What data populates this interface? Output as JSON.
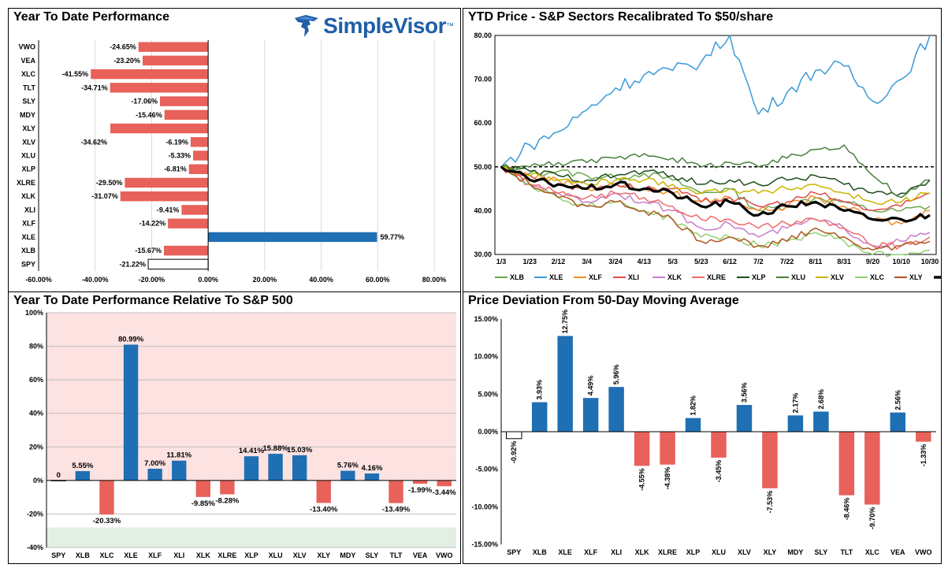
{
  "brand": {
    "name": "SimpleVisor",
    "tm": "™"
  },
  "colors": {
    "positive": "#1f6fb4",
    "negative": "#e8615a",
    "axis": "#000000",
    "grid": "#d9d9d9",
    "spy_fill": "#ffffff",
    "pink_zone": "#fde2e2",
    "green_zone": "#e3efe3"
  },
  "chart_data": [
    {
      "id": "ytd",
      "type": "bar",
      "orientation": "horizontal",
      "title": "Year To Date Performance",
      "categories": [
        "VWO",
        "VEA",
        "XLC",
        "TLT",
        "SLY",
        "MDY",
        "XLY",
        "XLV",
        "XLU",
        "XLP",
        "XLRE",
        "XLK",
        "XLI",
        "XLF",
        "XLE",
        "XLB",
        "SPY"
      ],
      "values": [
        -24.65,
        -23.2,
        -41.55,
        -34.71,
        -17.06,
        -15.46,
        -34.62,
        -6.19,
        -5.33,
        -6.81,
        -29.5,
        -31.07,
        -9.41,
        -14.22,
        59.77,
        -15.67,
        -21.22
      ],
      "labels": [
        "-24.65%",
        "-23.20%",
        "-41.55%",
        "-34.71%",
        "-17.06%",
        "-15.46%",
        "-34.62%",
        "-6.19%",
        "-5.33%",
        "-6.81%",
        "-29.50%",
        "-31.07%",
        "-9.41%",
        "-14.22%",
        "59.77%",
        "-15.67%",
        "-21.22%"
      ],
      "xlim": [
        -60,
        80
      ],
      "xticks": [
        -60,
        -40,
        -20,
        0,
        20,
        40,
        60,
        80
      ],
      "xtick_labels": [
        "-60.00%",
        "-40.00%",
        "-20.00%",
        "0.00%",
        "20.00%",
        "40.00%",
        "60.00%",
        "80.00%"
      ],
      "grid": true
    },
    {
      "id": "price",
      "type": "line",
      "title": "YTD Price - S&P Sectors Recalibrated To $50/share",
      "x_labels": [
        "1/3",
        "1/23",
        "2/12",
        "3/4",
        "3/24",
        "4/13",
        "5/3",
        "5/23",
        "6/12",
        "7/2",
        "7/22",
        "8/11",
        "8/31",
        "9/20",
        "10/10",
        "10/30"
      ],
      "ylim": [
        30,
        80
      ],
      "yticks": [
        30,
        40,
        50,
        60,
        70,
        80
      ],
      "ytick_labels": [
        "30.00",
        "40.00",
        "50.00",
        "60.00",
        "70.00",
        "80.00"
      ],
      "reference_line": 50,
      "legend_position": "bottom",
      "series": [
        {
          "name": "XLB",
          "color": "#6aa84f",
          "values": [
            50,
            48.5,
            49,
            48,
            47.5,
            48.5,
            47,
            44,
            45,
            40,
            41,
            43,
            42,
            40,
            40,
            41
          ]
        },
        {
          "name": "XLE",
          "color": "#3a9ad9",
          "values": [
            50,
            55,
            58,
            63,
            68,
            71,
            72,
            74,
            80,
            62,
            67,
            72,
            73,
            65,
            70,
            80
          ]
        },
        {
          "name": "XLF",
          "color": "#f28c28",
          "values": [
            50,
            48,
            47,
            45,
            46,
            45,
            44,
            42,
            43,
            40,
            41,
            43,
            41,
            38,
            37,
            40
          ]
        },
        {
          "name": "XLI",
          "color": "#e04b4b",
          "values": [
            50,
            48,
            46,
            45,
            46,
            45,
            45,
            42,
            43,
            41,
            42,
            44,
            42,
            40,
            41,
            44
          ]
        },
        {
          "name": "XLK",
          "color": "#c77dc7",
          "values": [
            50,
            46,
            44,
            42,
            44,
            42,
            40,
            36,
            37,
            34,
            36,
            38,
            36,
            32,
            33,
            35
          ]
        },
        {
          "name": "XLRE",
          "color": "#f06a6a",
          "values": [
            50,
            46,
            44,
            43,
            44,
            43,
            41,
            38,
            38,
            36,
            37,
            38,
            36,
            32,
            32,
            34
          ]
        },
        {
          "name": "XLP",
          "color": "#1d4d1d",
          "values": [
            50,
            49,
            48,
            47,
            48,
            49,
            48,
            46,
            47,
            46,
            47,
            48,
            46,
            44,
            44,
            47
          ]
        },
        {
          "name": "XLU",
          "color": "#4a7f3c",
          "values": [
            50,
            50,
            51,
            51,
            52,
            53,
            52,
            50,
            51,
            50,
            52,
            54,
            55,
            48,
            43,
            47
          ]
        },
        {
          "name": "XLV",
          "color": "#c9b400",
          "values": [
            50,
            48,
            47,
            46,
            47,
            47,
            46,
            44,
            45,
            44,
            45,
            46,
            44,
            42,
            42,
            44
          ]
        },
        {
          "name": "XLC",
          "color": "#90cf73",
          "values": [
            50,
            46,
            43,
            41,
            42,
            40,
            38,
            34,
            34,
            32,
            33,
            35,
            33,
            30,
            30,
            31
          ]
        },
        {
          "name": "XLY",
          "color": "#b0561d",
          "values": [
            50,
            46,
            43,
            41,
            42,
            40,
            38,
            33,
            34,
            32,
            33,
            36,
            34,
            31,
            32,
            33
          ]
        },
        {
          "name": "SPY",
          "color": "#000000",
          "values": [
            50,
            47,
            46,
            45,
            46,
            45,
            44,
            41,
            42,
            39,
            41,
            42,
            40,
            38,
            38,
            39
          ]
        }
      ]
    },
    {
      "id": "relative",
      "type": "bar",
      "orientation": "vertical",
      "title": "Year To Date Performance Relative To S&P 500",
      "categories": [
        "SPY",
        "XLB",
        "XLC",
        "XLE",
        "XLF",
        "XLI",
        "XLK",
        "XLRE",
        "XLP",
        "XLU",
        "XLV",
        "XLY",
        "MDY",
        "SLY",
        "TLT",
        "VEA",
        "VWO"
      ],
      "values": [
        0,
        5.55,
        -20.33,
        80.99,
        7.0,
        11.81,
        -9.85,
        -8.28,
        14.41,
        15.88,
        15.03,
        -13.4,
        5.76,
        4.16,
        -13.49,
        -1.99,
        -3.44
      ],
      "labels": [
        "0",
        "5.55%",
        "-20.33%",
        "80.99%",
        "7.00%",
        "11.81%",
        "-9.85%",
        "-8.28%",
        "14.41%",
        "15.88%",
        "15.03%",
        "-13.40%",
        "5.76%",
        "4.16%",
        "-13.49%",
        "-1.99%",
        "-3.44%"
      ],
      "ylim": [
        -40,
        100
      ],
      "yticks": [
        -40,
        -20,
        0,
        20,
        40,
        60,
        80,
        100
      ],
      "ytick_labels": [
        "-40%",
        "-20%",
        "0%",
        "20%",
        "40%",
        "60%",
        "80%",
        "100%"
      ],
      "grid": true
    },
    {
      "id": "deviation",
      "type": "bar",
      "orientation": "vertical",
      "title": "Price Deviation From 50-Day Moving Average",
      "categories": [
        "SPY",
        "XLB",
        "XLE",
        "XLF",
        "XLI",
        "XLK",
        "XLRE",
        "XLP",
        "XLU",
        "XLV",
        "XLY",
        "MDY",
        "SLY",
        "TLT",
        "XLC",
        "VEA",
        "VWO"
      ],
      "values": [
        -0.92,
        3.93,
        12.75,
        4.49,
        5.96,
        -4.55,
        -4.38,
        1.82,
        -3.45,
        3.56,
        -7.53,
        2.17,
        2.68,
        -8.46,
        -9.7,
        2.56,
        -1.33
      ],
      "labels": [
        "-0.92%",
        "3.93%",
        "12.75%",
        "4.49%",
        "5.96%",
        "-4.55%",
        "-4.38%",
        "1.82%",
        "-3.45%",
        "3.56%",
        "-7.53%",
        "2.17%",
        "2.68%",
        "-8.46%",
        "-9.70%",
        "2.56%",
        "-1.33%"
      ],
      "ylim": [
        -15,
        15
      ],
      "yticks": [
        -15,
        -10,
        -5,
        0,
        5,
        10,
        15
      ],
      "ytick_labels": [
        "-15.00%",
        "-10.00%",
        "-5.00%",
        "0.00%",
        "5.00%",
        "10.00%",
        "15.00%"
      ],
      "grid": false
    }
  ]
}
